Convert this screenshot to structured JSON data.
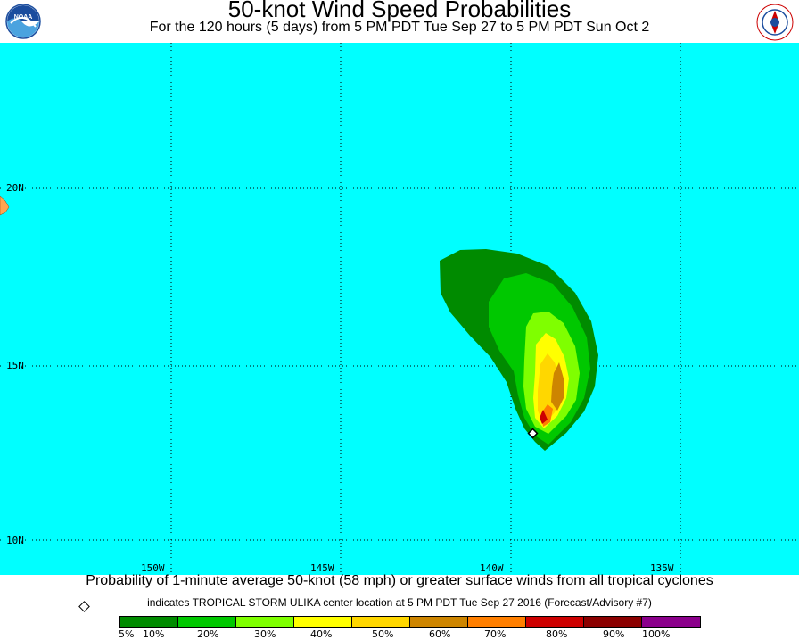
{
  "header": {
    "title": "50-knot Wind Speed Probabilities",
    "subtitle": "For the 120 hours (5 days) from 5 PM PDT Tue Sep 27 to 5 PM PDT Sun Oct 2",
    "logo_left_icon": "noaa-logo-icon",
    "logo_right_icon": "nws-logo-icon"
  },
  "map": {
    "ocean_color": "#00ffff",
    "land_color": "#ffa54f",
    "lat_labels": [
      "20N",
      "15N",
      "10N"
    ],
    "lon_labels": [
      "150W",
      "145W",
      "140W",
      "135W"
    ],
    "storm_marker_icon": "storm-center-diamond-icon"
  },
  "footer": {
    "line1": "Probability of 1-minute average 50-knot (58 mph) or greater surface winds from all tropical cyclones",
    "line2": "indicates TROPICAL STORM ULIKA center location at 5 PM PDT Tue Sep 27 2016 (Forecast/Advisory #7)"
  },
  "legend": {
    "colors": [
      "#008b00",
      "#00c800",
      "#7fff00",
      "#ffff00",
      "#ffd700",
      "#cd8500",
      "#ff7f00",
      "#cd0000",
      "#8b0000",
      "#8b008b"
    ],
    "labels": [
      "5%",
      "10%",
      "20%",
      "30%",
      "40%",
      "50%",
      "60%",
      "70%",
      "80%",
      "90%",
      "100%"
    ]
  }
}
